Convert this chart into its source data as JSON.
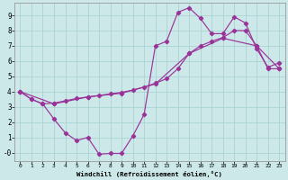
{
  "xlabel": "Windchill (Refroidissement éolien,°C)",
  "line_color": "#993399",
  "bg_color": "#cce8e8",
  "grid_color": "#aad4d4",
  "xlim_min": -0.5,
  "xlim_max": 23.5,
  "ylim_min": -0.55,
  "ylim_max": 9.8,
  "ytick_vals": [
    0,
    1,
    2,
    3,
    4,
    5,
    6,
    7,
    8,
    9
  ],
  "ytick_labels": [
    "-0",
    "1",
    "2",
    "3",
    "4",
    "5",
    "6",
    "7",
    "8",
    "9"
  ],
  "xtick_vals": [
    0,
    1,
    2,
    3,
    4,
    5,
    6,
    7,
    8,
    9,
    10,
    11,
    12,
    13,
    14,
    15,
    16,
    17,
    18,
    19,
    20,
    21,
    22,
    23
  ],
  "line1_x": [
    0,
    1,
    2,
    3,
    4,
    5,
    6,
    7,
    8,
    9,
    10,
    11,
    12,
    13,
    14,
    15,
    16,
    17,
    18,
    19,
    20,
    21,
    22,
    23
  ],
  "line1_y": [
    4.0,
    3.5,
    3.2,
    2.2,
    1.3,
    0.8,
    1.0,
    -0.1,
    -0.05,
    -0.05,
    1.1,
    2.5,
    7.0,
    7.3,
    9.2,
    9.5,
    8.8,
    7.8,
    7.8,
    8.9,
    8.5,
    6.8,
    5.6,
    5.9
  ],
  "line2_x": [
    0,
    3,
    6,
    9,
    12,
    15,
    18,
    21,
    23
  ],
  "line2_y": [
    4.0,
    3.2,
    3.65,
    3.9,
    4.5,
    6.5,
    7.5,
    7.0,
    5.5
  ],
  "line3_x": [
    0,
    1,
    2,
    3,
    4,
    5,
    6,
    7,
    8,
    9,
    10,
    11,
    12,
    13,
    14,
    15,
    16,
    17,
    18,
    19,
    20,
    21,
    22,
    23
  ],
  "line3_y": [
    4.0,
    3.5,
    3.2,
    3.25,
    3.4,
    3.55,
    3.65,
    3.75,
    3.85,
    3.95,
    4.1,
    4.3,
    4.55,
    4.85,
    5.5,
    6.5,
    7.0,
    7.3,
    7.55,
    8.0,
    8.0,
    7.0,
    5.5,
    5.5
  ]
}
